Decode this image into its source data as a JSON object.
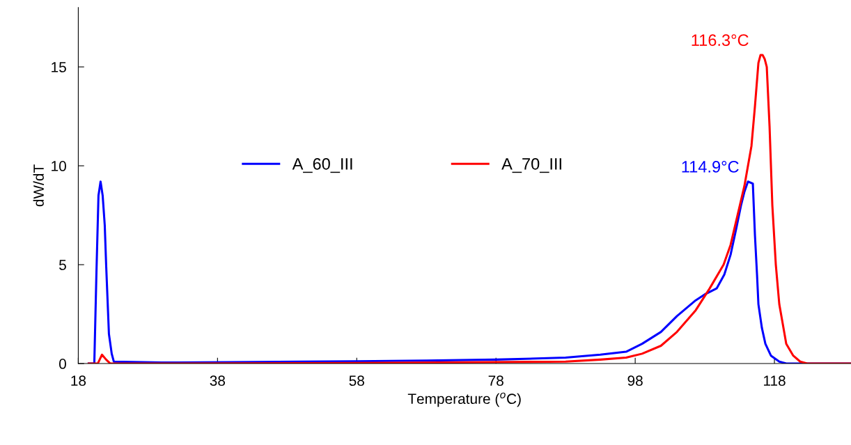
{
  "chart_data": {
    "type": "line",
    "xlabel": "Temperature ($^{o}$C)",
    "ylabel": "dW/dT",
    "xlim": [
      18,
      129
    ],
    "ylim": [
      0,
      18
    ],
    "xticks": [
      18,
      38,
      58,
      78,
      98,
      118
    ],
    "yticks": [
      0,
      5,
      10,
      15
    ],
    "grid": false,
    "legend": "top",
    "marker": "none",
    "line_style": "solid",
    "series": [
      {
        "name": "A_60_III",
        "color": "#0000ff",
        "x": [
          19.5,
          20.3,
          20.6,
          20.9,
          21.2,
          21.5,
          21.8,
          22.0,
          22.4,
          22.8,
          23.1,
          30,
          40,
          50,
          58,
          68,
          78,
          88,
          93,
          96.7,
          99,
          101.7,
          104,
          106.7,
          108,
          109.7,
          110.8,
          111.7,
          112.5,
          113.2,
          113.7,
          114.2,
          114.9,
          115.2,
          115.5,
          115.7,
          116.2,
          116.7,
          117.5,
          118.7,
          119.7,
          129
        ],
        "values": [
          0,
          0,
          4.5,
          8.5,
          9.2,
          8.5,
          7,
          5,
          1.5,
          0.5,
          0.1,
          0.05,
          0.07,
          0.1,
          0.12,
          0.15,
          0.2,
          0.3,
          0.45,
          0.6,
          1.0,
          1.6,
          2.4,
          3.2,
          3.5,
          3.8,
          4.5,
          5.5,
          6.8,
          8,
          8.7,
          9.2,
          9.1,
          6.5,
          4.5,
          3,
          1.8,
          1,
          0.4,
          0.1,
          0,
          0
        ]
      },
      {
        "name": "A_70_III",
        "color": "#ff0000",
        "x": [
          19.5,
          20.8,
          21.4,
          22.0,
          22.6,
          30,
          50,
          70,
          88,
          93,
          96.7,
          99,
          101.7,
          104,
          106.7,
          108.7,
          110.7,
          111.7,
          112.7,
          113.7,
          114.7,
          115.2,
          115.7,
          116.0,
          116.3,
          116.6,
          116.9,
          117.3,
          117.7,
          118.2,
          118.7,
          119.2,
          119.7,
          120.7,
          121.7,
          122.7,
          129
        ],
        "values": [
          0,
          0,
          0.45,
          0.2,
          0,
          0,
          0.02,
          0.05,
          0.1,
          0.2,
          0.3,
          0.5,
          0.9,
          1.6,
          2.7,
          3.8,
          5,
          6,
          7.5,
          9,
          11,
          13,
          15.2,
          15.6,
          15.6,
          15.4,
          15,
          12,
          8,
          5,
          3,
          2,
          1,
          0.4,
          0.1,
          0,
          0
        ]
      }
    ],
    "annotations": [
      {
        "text": "116.3°C",
        "x": 116.3,
        "y": 15.6
      },
      {
        "text": "114.9°C",
        "x": 114.9,
        "y": 9.2
      }
    ]
  }
}
